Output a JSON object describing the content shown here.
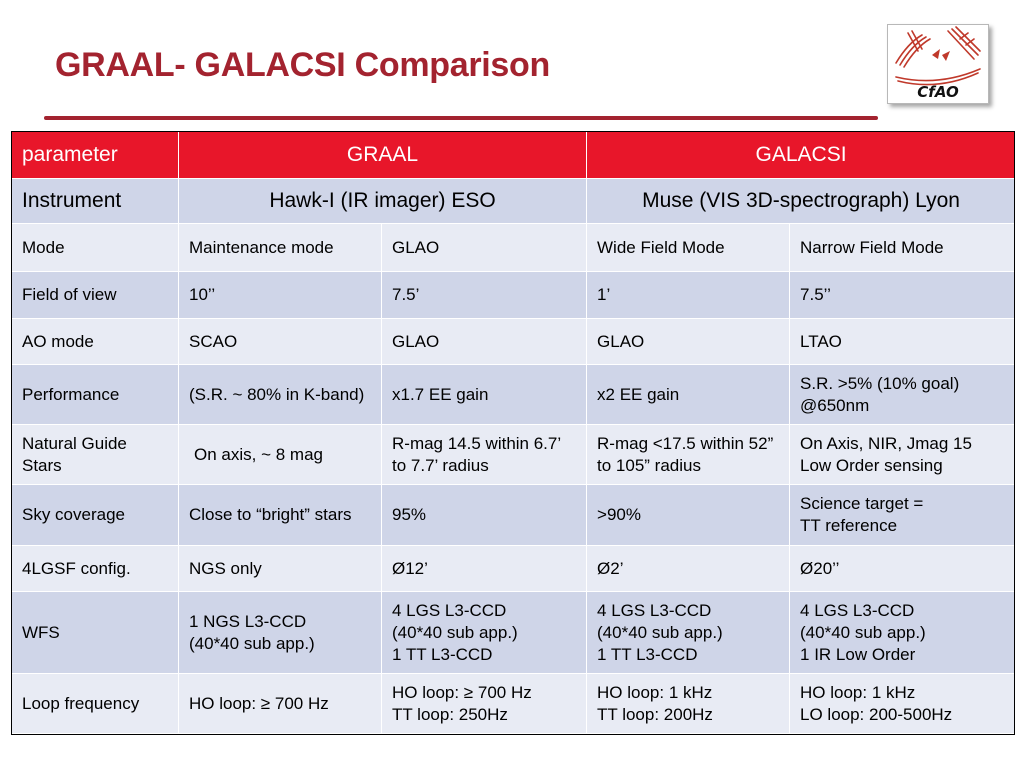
{
  "slide": {
    "title": "GRAAL- GALACSI Comparison",
    "logo_text": "CfAO"
  },
  "table": {
    "header": {
      "parameter": "parameter",
      "graal": "GRAAL",
      "galacsi": "GALACSI"
    },
    "instrument": {
      "label": "Instrument",
      "graal": "Hawk-I (IR imager) ESO",
      "galacsi": "Muse (VIS 3D-spectrograph) Lyon"
    },
    "rows": [
      {
        "label": "Mode",
        "c1": "Maintenance mode",
        "c2": "GLAO",
        "c3": "Wide Field Mode",
        "c4": "Narrow Field Mode"
      },
      {
        "label": "Field of view",
        "c1": "10’’",
        "c2": "7.5’",
        "c3": "1’",
        "c4": "7.5’’"
      },
      {
        "label": "AO mode",
        "c1": "SCAO",
        "c2": "GLAO",
        "c3": "GLAO",
        "c4": "LTAO"
      },
      {
        "label": "Performance",
        "c1": "(S.R. ~ 80% in K-band)",
        "c2": "x1.7 EE gain",
        "c3": "x2 EE gain",
        "c4": "S.R. >5% (10% goal)\n@650nm"
      },
      {
        "label": "Natural Guide Stars",
        "c1": "On axis, ~ 8 mag",
        "c2": "R-mag 14.5 within 6.7’ to 7.7’ radius",
        "c3": "R-mag <17.5 within 52” to 105” radius",
        "c4": "On Axis, NIR, Jmag 15\nLow Order sensing"
      },
      {
        "label": "Sky coverage",
        "c1": "Close to “bright” stars",
        "c2": "95%",
        "c3": ">90%",
        "c4": "Science target =\nTT reference"
      },
      {
        "label": "4LGSF config.",
        "c1": "NGS only",
        "c2": "Ø12’",
        "c3": "Ø2’",
        "c4": "Ø20’’"
      },
      {
        "label": "WFS",
        "c1": "1 NGS L3-CCD\n(40*40 sub app.)\n ",
        "c2": "4 LGS L3-CCD\n(40*40 sub app.)\n1 TT L3-CCD",
        "c3": "4 LGS L3-CCD\n(40*40 sub app.)\n1 TT L3-CCD",
        "c4": "4 LGS L3-CCD\n(40*40 sub app.)\n1 IR Low Order"
      },
      {
        "label": "Loop frequency",
        "c1": "HO loop: ≥ 700 Hz",
        "c2": "HO loop: ≥ 700 Hz\nTT loop: 250Hz",
        "c3": "HO loop: 1 kHz\nTT loop: 200Hz",
        "c4": "HO loop: 1 kHz\nLO loop: 200-500Hz"
      }
    ]
  }
}
